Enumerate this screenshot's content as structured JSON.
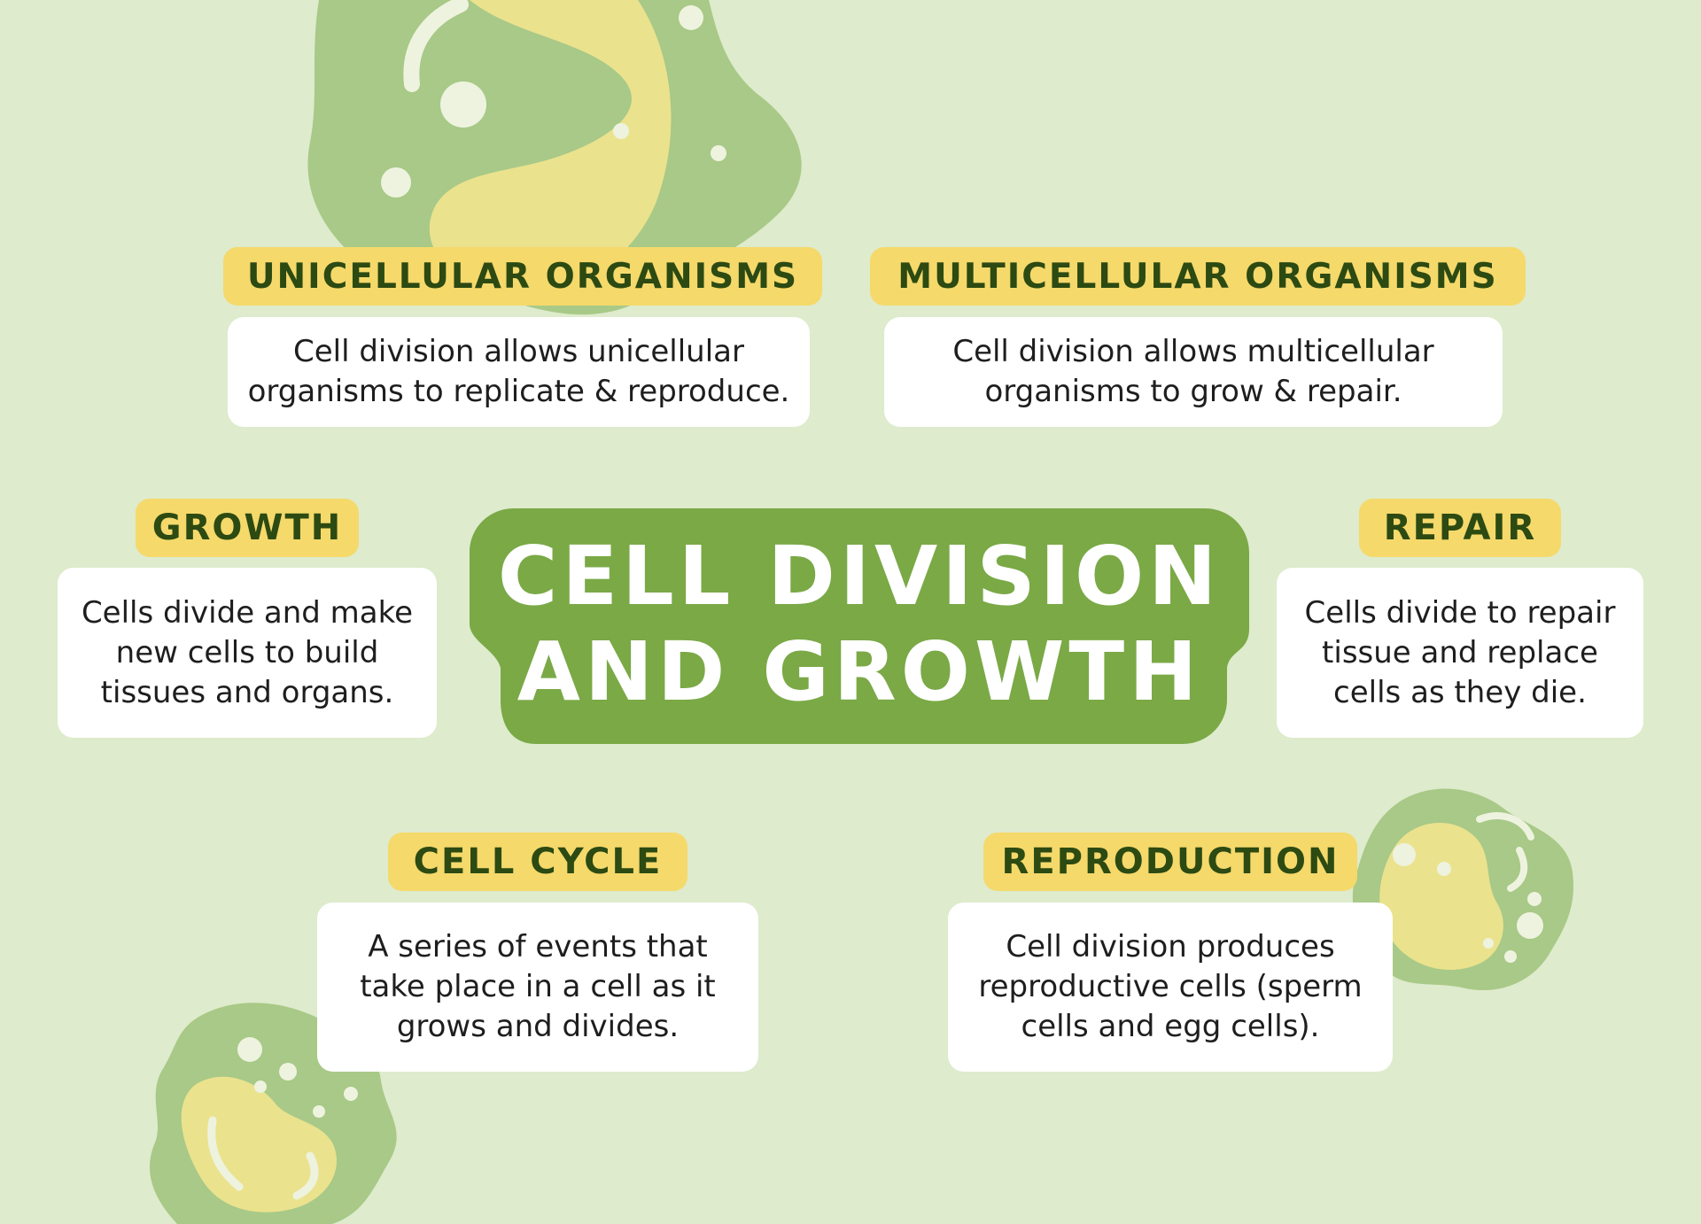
{
  "colors": {
    "background": "#deebcc",
    "title_box": "#7aa946",
    "label_bg": "#f5d96b",
    "label_text": "#2c4a12",
    "card_bg": "#ffffff",
    "cell_outer": "#a8c987",
    "cell_inner": "#ebe28e"
  },
  "title": {
    "line1": "CELL DIVISION",
    "line2": "AND GROWTH"
  },
  "sections": {
    "unicellular": {
      "label": "UNICELLULAR ORGANISMS",
      "line1": "Cell division allows unicellular",
      "line2": "organisms to replicate & reproduce."
    },
    "multicellular": {
      "label": "MULTICELLULAR ORGANISMS",
      "line1": "Cell division allows multicellular",
      "line2": "organisms to grow & repair."
    },
    "growth": {
      "label": "GROWTH",
      "line1": "Cells divide and make",
      "line2": "new cells to build",
      "line3": "tissues and organs."
    },
    "repair": {
      "label": "REPAIR",
      "line1": "Cells divide to repair",
      "line2": "tissue and replace",
      "line3": "cells as they die."
    },
    "cell_cycle": {
      "label": "CELL CYCLE",
      "line1": "A series of events that",
      "line2": "take place in a cell as it",
      "line3": "grows and divides."
    },
    "reproduction": {
      "label": "REPRODUCTION",
      "line1": "Cell division produces",
      "line2": "reproductive cells (sperm",
      "line3": "cells and egg cells)."
    }
  },
  "icons": [
    "cell-illustration-icon"
  ]
}
